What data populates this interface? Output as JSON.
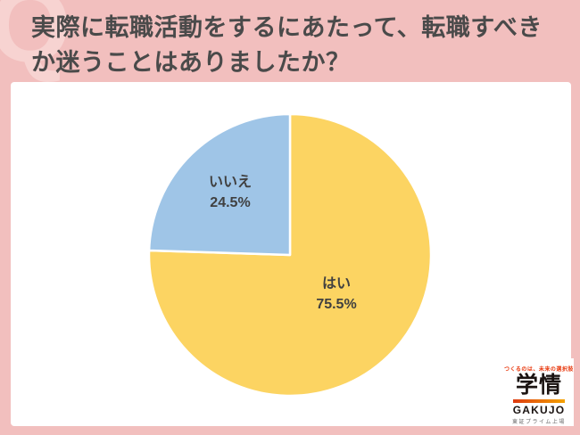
{
  "page": {
    "background_color": "#F2BFBE",
    "watermark_letter": "Q",
    "watermark_color": "#F7D3D1"
  },
  "header": {
    "title_line1": "実際に転職活動をするにあたって、転職すべき",
    "title_line2": "か迷うことはありましたか？",
    "title_color": "#4A4A4A"
  },
  "chart_data": {
    "type": "pie",
    "title": "実際に転職活動をするにあたって、転職すべきか迷うことはありましたか？",
    "start_angle_deg": 0,
    "direction": "clockwise",
    "slices": [
      {
        "label": "はい",
        "value": 75.5,
        "value_label": "75.5%",
        "color": "#FCD462"
      },
      {
        "label": "いいえ",
        "value": 24.5,
        "value_label": "24.5%",
        "color": "#9FC5E7"
      }
    ],
    "slice_border_color": "#FFFFFF",
    "label_text_color": "#404040",
    "legend": "none",
    "labels_position": "inside"
  },
  "logo": {
    "tagline": "つくるのは、未来の選択肢",
    "tagline_color": "#E8380D",
    "company_kanji": "学情",
    "company_roman": "GAKUJO",
    "subtext": "東証プライム上場",
    "bar_gradient_start": "#DC3A10",
    "bar_gradient_end": "#F5A300"
  }
}
